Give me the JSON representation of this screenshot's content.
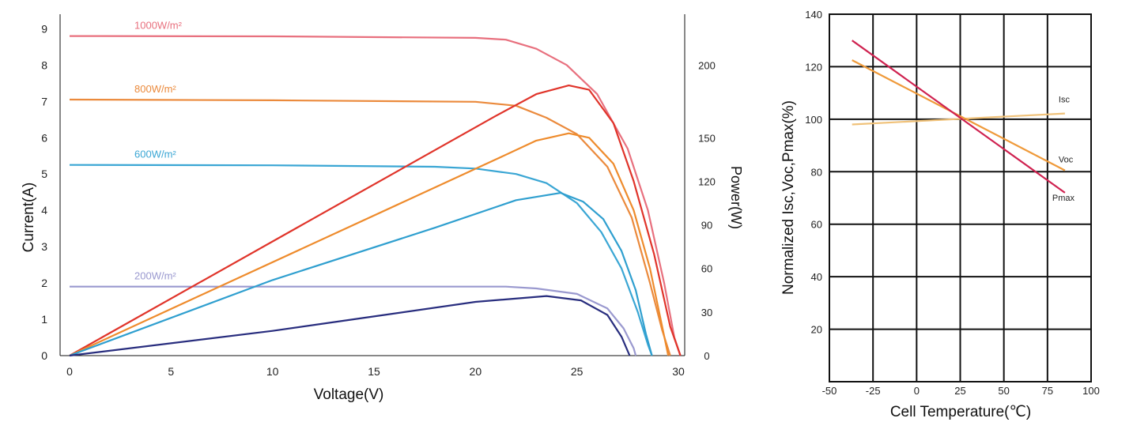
{
  "chart_data": [
    {
      "type": "line",
      "title": "",
      "xlabel": "Voltage(V)",
      "ylabel": "Current(A)",
      "y2label": "Power(W)",
      "xlim": [
        0,
        30
      ],
      "ylim": [
        0,
        9.4
      ],
      "y2lim": [
        0,
        235
      ],
      "xticks": [
        0,
        5,
        10,
        15,
        20,
        25,
        30
      ],
      "yticks": [
        0,
        1,
        2,
        3,
        4,
        5,
        6,
        7,
        8,
        9
      ],
      "y2ticks": [
        0,
        30,
        60,
        90,
        120,
        150,
        200
      ],
      "grid": false,
      "curve_labels": [
        "1000W/m²",
        "800W/m²",
        "600W/m²",
        "200W/m²"
      ],
      "iv_series": [
        {
          "label": "1000W/m²",
          "color": "#e8707e",
          "points": [
            [
              0,
              8.8
            ],
            [
              10,
              8.79
            ],
            [
              20,
              8.75
            ],
            [
              21.5,
              8.7
            ],
            [
              23,
              8.45
            ],
            [
              24.5,
              8.0
            ],
            [
              26,
              7.2
            ],
            [
              27.5,
              5.7
            ],
            [
              28.5,
              4.0
            ],
            [
              29.3,
              2.0
            ],
            [
              29.8,
              0.5
            ],
            [
              30.1,
              0
            ]
          ]
        },
        {
          "label": "800W/m²",
          "color": "#eb8a3c",
          "points": [
            [
              0,
              7.05
            ],
            [
              10,
              7.03
            ],
            [
              20,
              6.99
            ],
            [
              22,
              6.88
            ],
            [
              23.5,
              6.55
            ],
            [
              25,
              6.1
            ],
            [
              26.5,
              5.2
            ],
            [
              27.7,
              3.8
            ],
            [
              28.6,
              2.0
            ],
            [
              29.2,
              0.7
            ],
            [
              29.6,
              0
            ]
          ]
        },
        {
          "label": "600W/m²",
          "color": "#3aa6d4",
          "points": [
            [
              0,
              5.25
            ],
            [
              10,
              5.24
            ],
            [
              18,
              5.2
            ],
            [
              20,
              5.15
            ],
            [
              22,
              5.0
            ],
            [
              23.5,
              4.75
            ],
            [
              25,
              4.2
            ],
            [
              26.2,
              3.4
            ],
            [
              27.2,
              2.4
            ],
            [
              28,
              1.2
            ],
            [
              28.5,
              0.3
            ],
            [
              28.7,
              0
            ]
          ]
        },
        {
          "label": "200W/m²",
          "color": "#9a99cf",
          "points": [
            [
              0,
              1.9
            ],
            [
              10,
              1.9
            ],
            [
              21.5,
              1.9
            ],
            [
              23,
              1.85
            ],
            [
              25,
              1.7
            ],
            [
              26.5,
              1.3
            ],
            [
              27.3,
              0.75
            ],
            [
              27.8,
              0.2
            ],
            [
              27.9,
              0
            ]
          ]
        }
      ],
      "pv_series": [
        {
          "color": "#e0342a",
          "points": [
            [
              0,
              0
            ],
            [
              21,
              165
            ],
            [
              23,
              180
            ],
            [
              24.6,
              186
            ],
            [
              25.6,
              183
            ],
            [
              26.8,
              160
            ],
            [
              27.8,
              120
            ],
            [
              28.8,
              70
            ],
            [
              29.6,
              20
            ],
            [
              30.1,
              0
            ]
          ]
        },
        {
          "color": "#ee8b2c",
          "points": [
            [
              0,
              0
            ],
            [
              21,
              135
            ],
            [
              23,
              148
            ],
            [
              24.6,
              153
            ],
            [
              25.6,
              150
            ],
            [
              26.8,
              132
            ],
            [
              27.8,
              100
            ],
            [
              28.6,
              60
            ],
            [
              29.2,
              20
            ],
            [
              29.5,
              0
            ]
          ]
        },
        {
          "color": "#2f9fcf",
          "points": [
            [
              0,
              0
            ],
            [
              10,
              52
            ],
            [
              18,
              88
            ],
            [
              22,
              107
            ],
            [
              24.2,
              112
            ],
            [
              25.3,
              106
            ],
            [
              26.3,
              94
            ],
            [
              27.2,
              72
            ],
            [
              27.9,
              45
            ],
            [
              28.4,
              15
            ],
            [
              28.7,
              0
            ]
          ]
        },
        {
          "color": "#282d7e",
          "points": [
            [
              0,
              0
            ],
            [
              10,
              17
            ],
            [
              15,
              27
            ],
            [
              20,
              37
            ],
            [
              23.5,
              41
            ],
            [
              25.2,
              38
            ],
            [
              26.5,
              28
            ],
            [
              27.2,
              13
            ],
            [
              27.6,
              0
            ]
          ]
        }
      ]
    },
    {
      "type": "line",
      "title": "",
      "xlabel": "Cell Temperature(℃)",
      "ylabel": "Normalized Isc,Voc,Pmax(%)",
      "xlim": [
        -50,
        100
      ],
      "ylim": [
        0,
        140
      ],
      "xticks": [
        -50,
        -25,
        0,
        25,
        50,
        75,
        100
      ],
      "yticks": [
        20,
        40,
        60,
        80,
        100,
        120,
        140
      ],
      "grid": true,
      "series": [
        {
          "name": "Isc",
          "color": "#f0c27a",
          "points": [
            [
              -37,
              98
            ],
            [
              85,
              102.2
            ]
          ]
        },
        {
          "name": "Voc",
          "color": "#ef9a3a",
          "points": [
            [
              -37,
              122.5
            ],
            [
              85,
              80.5
            ]
          ]
        },
        {
          "name": "Pmax",
          "color": "#cf2250",
          "points": [
            [
              -37,
              130
            ],
            [
              85,
              72
            ]
          ]
        }
      ]
    }
  ]
}
